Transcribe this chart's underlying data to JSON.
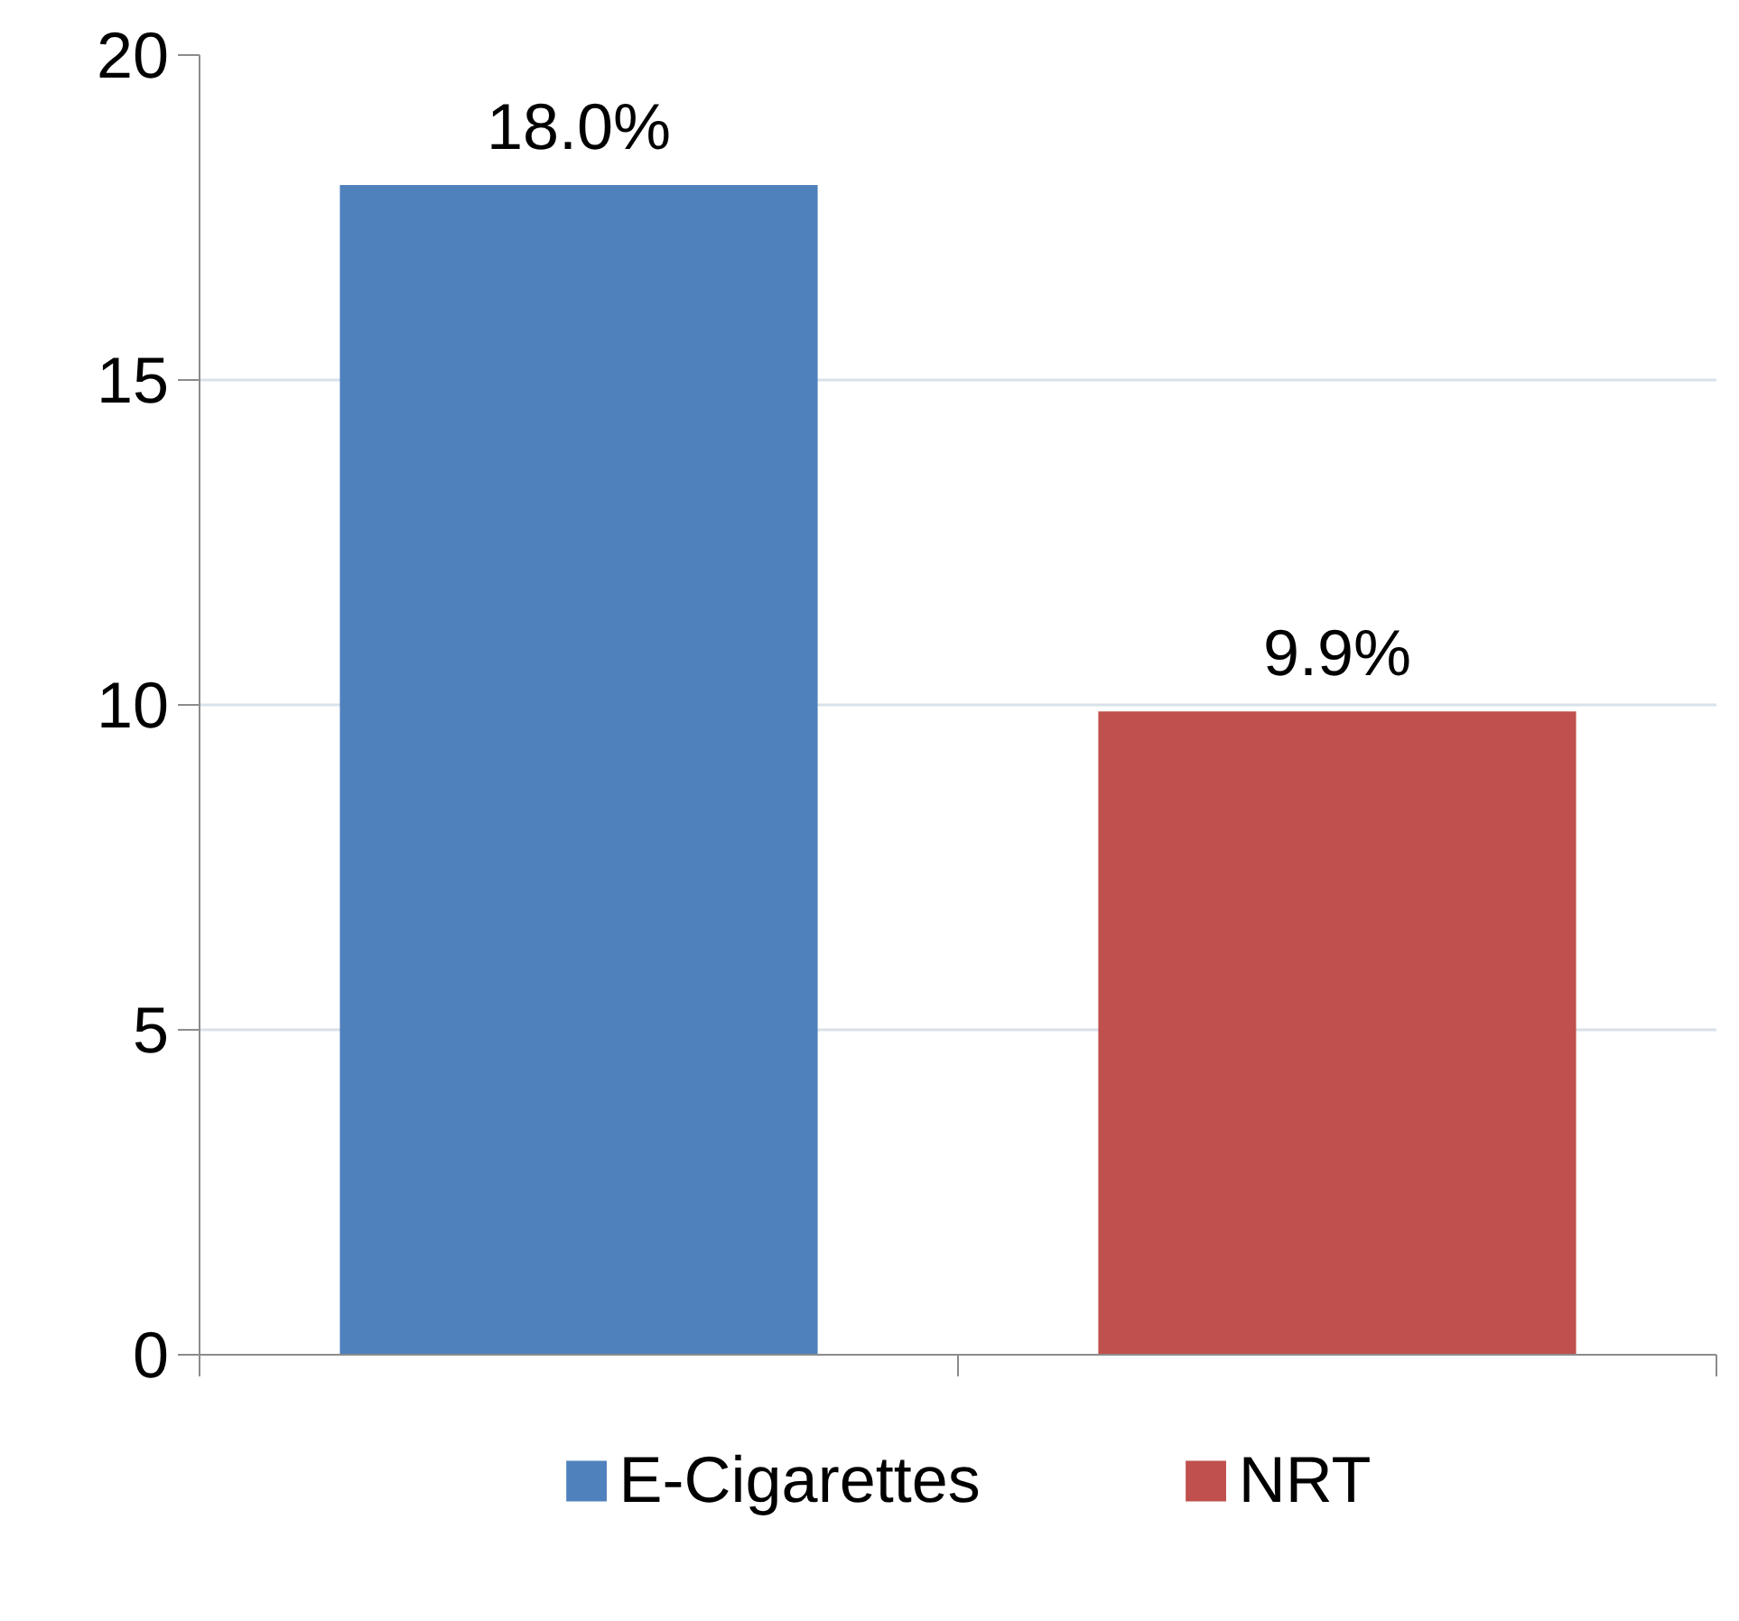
{
  "chart_data": {
    "type": "bar",
    "categories": [
      null,
      null
    ],
    "series": [
      {
        "name": "E-Cigarettes",
        "color": "#4f81bd",
        "values": [
          18.0,
          null
        ],
        "value_labels": [
          "18.0%",
          null
        ]
      },
      {
        "name": "NRT",
        "color": "#c0504d",
        "values": [
          null,
          9.9
        ],
        "value_labels": [
          null,
          "9.9%"
        ]
      }
    ],
    "ylim": [
      0,
      20
    ],
    "yticks": [
      0,
      5,
      10,
      15,
      20
    ],
    "grid": "y",
    "legend": "bottom"
  }
}
